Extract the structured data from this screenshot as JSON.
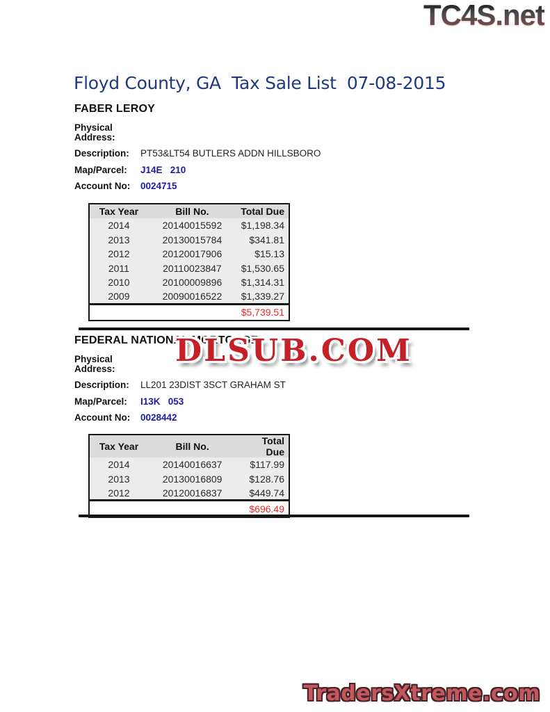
{
  "watermarks": {
    "top_logo": "TC4S.net",
    "overlay": "DLSUB.COM",
    "bottom": "TradersXtreme.com"
  },
  "title": "Floyd County, GA  Tax Sale List  07-08-2015",
  "labels": {
    "physical_address": "Physical Address:",
    "description": "Description:",
    "map_parcel": "Map/Parcel:",
    "account_no": "Account No:"
  },
  "colors": {
    "title_blue": "#1f3a7d",
    "value_blue": "#1b1ba8",
    "total_red": "#ea2a21",
    "watermark_red": "#c51f28",
    "table_header_bg": "#dcdcdc",
    "table_body_bg": "#ececec"
  },
  "listings": [
    {
      "owner": "FABER LEROY",
      "physical_address": "",
      "description": "PT53&LT54 BUTLERS ADDN HILLSBORO",
      "map_parcel": "J14E   210",
      "account_no": "0024715",
      "table": {
        "headers": [
          "Tax Year",
          "Bill No.",
          "Total Due"
        ],
        "rows": [
          [
            "2014",
            "20140015592",
            "$1,198.34"
          ],
          [
            "2013",
            "20130015784",
            "$341.81"
          ],
          [
            "2012",
            "20120017906",
            "$15.13"
          ],
          [
            "2011",
            "20110023847",
            "$1,530.65"
          ],
          [
            "2010",
            "20100009896",
            "$1,314.31"
          ],
          [
            "2009",
            "20090016522",
            "$1,339.27"
          ]
        ],
        "total": "$5,739.51"
      }
    },
    {
      "owner": "FEDERAL NATIONAL MORTGAGE",
      "physical_address": "",
      "description": "LL201 23DIST 3SCT GRAHAM ST",
      "map_parcel": "I13K   053",
      "account_no": "0028442",
      "table": {
        "headers": [
          "Tax Year",
          "Bill No.",
          "Total Due"
        ],
        "rows": [
          [
            "2014",
            "20140016637",
            "$117.99"
          ],
          [
            "2013",
            "20130016809",
            "$128.76"
          ],
          [
            "2012",
            "20120016837",
            "$449.74"
          ]
        ],
        "total": "$696.49"
      }
    }
  ]
}
